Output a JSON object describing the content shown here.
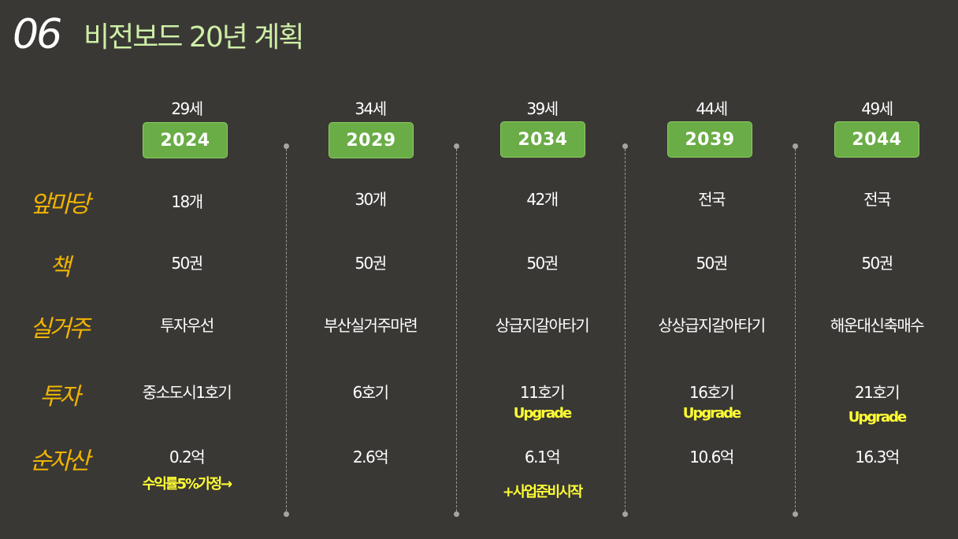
{
  "header": {
    "section_number": "06",
    "title": "비전보드 20년 계획"
  },
  "row_labels": [
    "앞마당",
    "책",
    "실거주",
    "투자",
    "순자산"
  ],
  "columns": [
    {
      "age": "29세",
      "year": "2024",
      "front_yard": "18개",
      "books": "50권",
      "residence": "투자우선",
      "investment": "중소도시1호기",
      "investment_note": "",
      "net_assets": "0.2억",
      "net_assets_note": "수익률5%가정→"
    },
    {
      "age": "34세",
      "year": "2029",
      "front_yard": "30개",
      "books": "50권",
      "residence": "부산실거주마련",
      "investment": "6호기",
      "investment_note": "",
      "net_assets": "2.6억",
      "net_assets_note": ""
    },
    {
      "age": "39세",
      "year": "2034",
      "front_yard": "42개",
      "books": "50권",
      "residence": "상급지갈아타기",
      "investment": "11호기",
      "investment_note": "Upgrade",
      "net_assets": "6.1억",
      "net_assets_note": "+사업준비시작"
    },
    {
      "age": "44세",
      "year": "2039",
      "front_yard": "전국",
      "books": "50권",
      "residence": "상상급지갈아타기",
      "investment": "16호기",
      "investment_note": "Upgrade",
      "net_assets": "10.6억",
      "net_assets_note": ""
    },
    {
      "age": "49세",
      "year": "2044",
      "front_yard": "전국",
      "books": "50권",
      "residence": "해운대신축매수",
      "investment": "21호기",
      "investment_note": "Upgrade",
      "net_assets": "16.3억",
      "net_assets_note": ""
    }
  ],
  "colors": {
    "background": "#3a3835",
    "year_badge": "#6aac46",
    "row_label": "#f0b400",
    "title": "#cdeea6",
    "note": "#ffff33"
  }
}
